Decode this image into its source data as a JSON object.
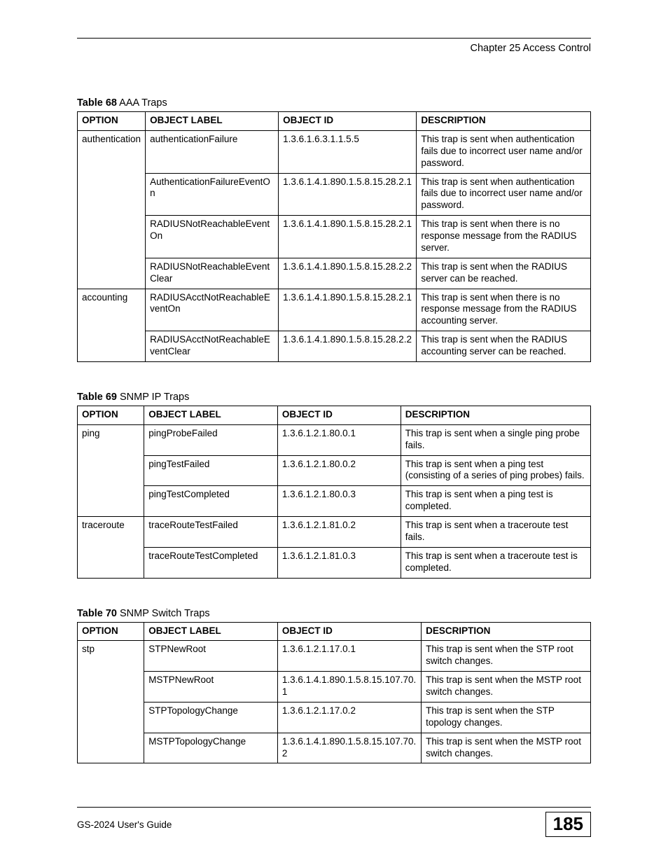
{
  "header": {
    "chapter_title": "Chapter 25 Access Control"
  },
  "tables": {
    "t68": {
      "caption_bold": "Table 68",
      "caption_rest": "   AAA Traps",
      "col_widths": [
        "13%",
        "26%",
        "27%",
        "34%"
      ],
      "headers": [
        "OPTION",
        "OBJECT LABEL",
        "OBJECT ID",
        "DESCRIPTION"
      ],
      "rows": [
        {
          "option": "authentication",
          "option_rowspan": 4,
          "label": "authenticationFailure",
          "oid": "1.3.6.1.6.3.1.1.5.5",
          "desc": "This trap is sent when authentication fails due to incorrect user name and/or password."
        },
        {
          "label": "AuthenticationFailureEventOn",
          "oid": "1.3.6.1.4.1.890.1.5.8.15.28.2.1",
          "desc": "This trap is sent when authentication fails due to incorrect user name and/or password."
        },
        {
          "label": "RADIUSNotReachableEventOn",
          "oid": "1.3.6.1.4.1.890.1.5.8.15.28.2.1",
          "desc": "This trap is sent when there is no response message from the RADIUS server."
        },
        {
          "label": "RADIUSNotReachableEventClear",
          "oid": "1.3.6.1.4.1.890.1.5.8.15.28.2.2",
          "desc": "This trap is sent when the RADIUS server can be reached."
        },
        {
          "option": "accounting",
          "option_rowspan": 2,
          "label": "RADIUSAcctNotReachableEventOn",
          "oid": "1.3.6.1.4.1.890.1.5.8.15.28.2.1",
          "desc": "This trap is sent when there is no response message from the RADIUS accounting server."
        },
        {
          "label": "RADIUSAcctNotReachableEventClear",
          "oid": "1.3.6.1.4.1.890.1.5.8.15.28.2.2",
          "desc": "This trap is sent when the RADIUS accounting server can be reached."
        }
      ]
    },
    "t69": {
      "caption_bold": "Table 69",
      "caption_rest": "   SNMP IP Traps",
      "col_widths": [
        "13%",
        "26%",
        "24%",
        "37%"
      ],
      "headers": [
        "OPTION",
        "OBJECT LABEL",
        "OBJECT ID",
        "DESCRIPTION"
      ],
      "rows": [
        {
          "option": "ping",
          "option_rowspan": 3,
          "label": "pingProbeFailed",
          "oid": "1.3.6.1.2.1.80.0.1",
          "desc": "This trap is sent when a single ping probe fails."
        },
        {
          "label": "pingTestFailed",
          "oid": "1.3.6.1.2.1.80.0.2",
          "desc": "This trap is sent when a ping test (consisting of a series of ping probes) fails."
        },
        {
          "label": "pingTestCompleted",
          "oid": "1.3.6.1.2.1.80.0.3",
          "desc": "This trap is sent when a ping test is completed."
        },
        {
          "option": "traceroute",
          "option_rowspan": 2,
          "label": "traceRouteTestFailed",
          "oid": "1.3.6.1.2.1.81.0.2",
          "desc": "This trap is sent when a traceroute test fails."
        },
        {
          "label": "traceRouteTestCompleted",
          "oid": "1.3.6.1.2.1.81.0.3",
          "desc": "This trap is sent when a traceroute test is completed."
        }
      ]
    },
    "t70": {
      "caption_bold": "Table 70",
      "caption_rest": "   SNMP Switch Traps",
      "col_widths": [
        "13%",
        "26%",
        "28%",
        "33%"
      ],
      "headers": [
        "OPTION",
        "OBJECT LABEL",
        "OBJECT ID",
        "DESCRIPTION"
      ],
      "rows": [
        {
          "option": "stp",
          "option_rowspan": 4,
          "label": "STPNewRoot",
          "oid": "1.3.6.1.2.1.17.0.1",
          "desc": "This trap is sent when the STP root switch changes."
        },
        {
          "label": "MSTPNewRoot",
          "oid": "1.3.6.1.4.1.890.1.5.8.15.107.70.1",
          "desc": "This trap is sent when the MSTP root switch changes."
        },
        {
          "label": "STPTopologyChange",
          "oid": "1.3.6.1.2.1.17.0.2",
          "desc": "This trap is sent when the STP topology changes."
        },
        {
          "label": "MSTPTopologyChange",
          "oid": "1.3.6.1.4.1.890.1.5.8.15.107.70.2",
          "desc": "This trap is sent when the MSTP root switch changes."
        }
      ]
    }
  },
  "footer": {
    "guide": "GS-2024 User's Guide",
    "page_number": "185"
  }
}
